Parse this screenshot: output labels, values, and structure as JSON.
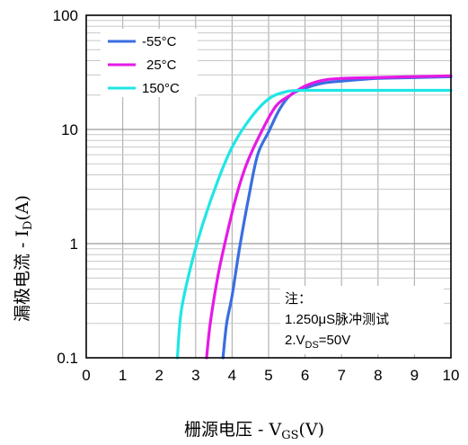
{
  "chart_data": {
    "type": "line",
    "xlabel": "栅源电压 - V",
    "xlabel_sub": "GS",
    "xlabel_suffix": "(V)",
    "ylabel": "漏极电流 - I",
    "ylabel_sub": "D",
    "ylabel_suffix": "(A)",
    "xlim": [
      0,
      10
    ],
    "ylim": [
      0.1,
      100
    ],
    "yscale": "log",
    "grid": true,
    "legend_position": "top-left",
    "xticks": [
      "0",
      "1",
      "2",
      "3",
      "4",
      "5",
      "6",
      "7",
      "8",
      "9",
      "10"
    ],
    "yticks": [
      "0.1",
      "1",
      "10",
      "100"
    ],
    "series": [
      {
        "name": "-55°C",
        "color": "#3a6ee0",
        "x": [
          3.75,
          3.85,
          4.0,
          4.2,
          4.45,
          4.7,
          5.0,
          5.3,
          5.6,
          6.0,
          6.5,
          7.0,
          8.0,
          9.0,
          10.0
        ],
        "y": [
          0.1,
          0.2,
          0.35,
          0.9,
          2.5,
          6.0,
          9.5,
          15.0,
          20.0,
          23.0,
          25.5,
          26.5,
          28.0,
          28.5,
          29.0
        ]
      },
      {
        "name": "25°C",
        "color": "#e619e6",
        "x": [
          3.3,
          3.4,
          3.6,
          3.8,
          4.1,
          4.4,
          4.8,
          5.2,
          5.6,
          6.0,
          6.5,
          7.0,
          8.0,
          9.0,
          10.0
        ],
        "y": [
          0.1,
          0.2,
          0.5,
          1.0,
          2.5,
          5.0,
          9.5,
          16.0,
          20.0,
          24.0,
          27.0,
          28.0,
          28.5,
          29.0,
          29.5
        ]
      },
      {
        "name": "150°C",
        "color": "#1ee6e6",
        "x": [
          2.5,
          2.6,
          2.85,
          3.2,
          3.6,
          4.0,
          4.5,
          5.0,
          5.5,
          6.0,
          7.0,
          8.0,
          9.0,
          10.0
        ],
        "y": [
          0.1,
          0.25,
          0.6,
          1.5,
          3.5,
          7.0,
          12.5,
          18.5,
          21.5,
          22.0,
          22.0,
          22.0,
          22.0,
          22.0
        ]
      }
    ],
    "note": {
      "title": "注：",
      "line1": "1.250μS脉冲测试",
      "line2_prefix": "2.V",
      "line2_sub": "DS",
      "line2_suffix": "=50V"
    }
  }
}
